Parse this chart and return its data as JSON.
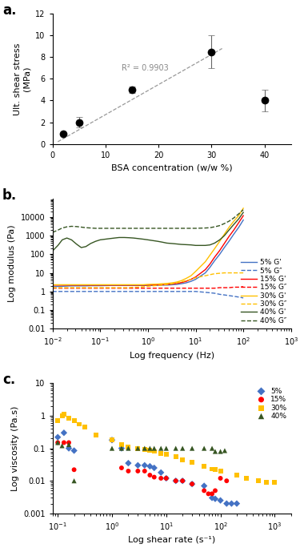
{
  "panel_a": {
    "x": [
      2,
      5,
      15,
      30,
      40
    ],
    "y": [
      0.9,
      2.0,
      5.0,
      8.5,
      4.0
    ],
    "yerr": [
      0.1,
      0.5,
      0.3,
      1.5,
      1.0
    ],
    "trendline_x": [
      1,
      32
    ],
    "trendline_y": [
      0.2,
      8.8
    ],
    "r2_text": "R² = 0.9903",
    "r2_x": 13,
    "r2_y": 6.8,
    "xlabel": "BSA concentration (w/w %)",
    "ylabel": "Ult. shear stress\n(MPa)",
    "xlim": [
      0,
      45
    ],
    "ylim": [
      0,
      12
    ],
    "xticks": [
      0,
      10,
      20,
      30,
      40
    ],
    "yticks": [
      0,
      2,
      4,
      6,
      8,
      10,
      12
    ]
  },
  "panel_b": {
    "xlabel": "Log frequency (Hz)",
    "ylabel": "Log modulus (Pa)",
    "series": {
      "5pct_Gp": {
        "x": [
          0.01,
          0.016,
          0.02,
          0.025,
          0.032,
          0.04,
          0.05,
          0.063,
          0.08,
          0.1,
          0.16,
          0.2,
          0.25,
          0.32,
          0.4,
          0.5,
          0.63,
          0.8,
          1.0,
          1.6,
          2.0,
          2.5,
          3.2,
          4.0,
          5.0,
          6.3,
          8.0,
          10.0,
          16.0,
          20.0,
          25.0,
          32.0,
          40.0,
          50.0,
          63.0,
          80.0,
          100.0
        ],
        "y": [
          1.8,
          1.9,
          1.95,
          2.0,
          2.0,
          2.0,
          2.0,
          2.05,
          2.05,
          2.05,
          2.1,
          2.1,
          2.1,
          2.1,
          2.1,
          2.1,
          2.1,
          2.1,
          2.1,
          2.15,
          2.2,
          2.2,
          2.3,
          2.4,
          2.6,
          2.9,
          3.5,
          4.5,
          10.0,
          20.0,
          45.0,
          100.0,
          230.0,
          500.0,
          1200.0,
          2800.0,
          7000.0
        ],
        "color": "#4472C4",
        "ls": "-",
        "label": "5% G'"
      },
      "5pct_Gpp": {
        "x": [
          0.01,
          0.016,
          0.02,
          0.025,
          0.032,
          0.04,
          0.05,
          0.063,
          0.08,
          0.1,
          0.16,
          0.2,
          0.25,
          0.32,
          0.4,
          0.5,
          0.63,
          0.8,
          1.0,
          1.6,
          2.0,
          2.5,
          3.2,
          4.0,
          5.0,
          6.3,
          8.0,
          10.0,
          16.0,
          20.0,
          25.0,
          32.0,
          40.0,
          50.0,
          63.0,
          80.0,
          100.0
        ],
        "y": [
          1.0,
          1.0,
          1.0,
          1.0,
          1.0,
          1.0,
          1.0,
          1.0,
          1.0,
          1.0,
          1.0,
          1.0,
          1.0,
          1.0,
          1.0,
          1.0,
          1.0,
          1.0,
          1.0,
          1.0,
          1.0,
          1.0,
          1.0,
          1.0,
          1.0,
          1.0,
          1.0,
          1.0,
          0.9,
          0.85,
          0.8,
          0.7,
          0.65,
          0.6,
          0.55,
          0.5,
          0.45
        ],
        "color": "#4472C4",
        "ls": "--",
        "label": "5% G″"
      },
      "15pct_Gp": {
        "x": [
          0.01,
          0.016,
          0.02,
          0.025,
          0.032,
          0.04,
          0.05,
          0.063,
          0.08,
          0.1,
          0.16,
          0.2,
          0.25,
          0.32,
          0.4,
          0.5,
          0.63,
          0.8,
          1.0,
          1.6,
          2.0,
          2.5,
          3.2,
          4.0,
          5.0,
          6.3,
          8.0,
          10.0,
          16.0,
          20.0,
          25.0,
          32.0,
          40.0,
          50.0,
          63.0,
          80.0,
          100.0
        ],
        "y": [
          2.2,
          2.2,
          2.2,
          2.2,
          2.2,
          2.2,
          2.2,
          2.2,
          2.2,
          2.2,
          2.2,
          2.2,
          2.2,
          2.2,
          2.2,
          2.2,
          2.2,
          2.2,
          2.2,
          2.3,
          2.35,
          2.4,
          2.5,
          2.7,
          3.0,
          3.5,
          4.5,
          6.0,
          15.0,
          30.0,
          70.0,
          160.0,
          380.0,
          900.0,
          2000.0,
          5000.0,
          12000.0
        ],
        "color": "#FF0000",
        "ls": "-",
        "label": "15% G'"
      },
      "15pct_Gpp": {
        "x": [
          0.01,
          0.016,
          0.02,
          0.025,
          0.032,
          0.04,
          0.05,
          0.063,
          0.08,
          0.1,
          0.16,
          0.2,
          0.25,
          0.32,
          0.4,
          0.5,
          0.63,
          0.8,
          1.0,
          1.6,
          2.0,
          2.5,
          3.2,
          4.0,
          5.0,
          6.3,
          8.0,
          10.0,
          16.0,
          20.0,
          25.0,
          32.0,
          40.0,
          50.0,
          63.0,
          80.0,
          100.0
        ],
        "y": [
          1.5,
          1.5,
          1.5,
          1.5,
          1.5,
          1.5,
          1.5,
          1.5,
          1.5,
          1.5,
          1.5,
          1.5,
          1.5,
          1.5,
          1.5,
          1.5,
          1.5,
          1.5,
          1.5,
          1.5,
          1.5,
          1.5,
          1.5,
          1.5,
          1.5,
          1.5,
          1.5,
          1.5,
          1.5,
          1.5,
          1.5,
          1.6,
          1.6,
          1.6,
          1.7,
          1.7,
          1.8
        ],
        "color": "#FF0000",
        "ls": "--",
        "label": "15% G″"
      },
      "30pct_Gp": {
        "x": [
          0.01,
          0.016,
          0.02,
          0.025,
          0.032,
          0.04,
          0.05,
          0.063,
          0.08,
          0.1,
          0.16,
          0.2,
          0.25,
          0.32,
          0.4,
          0.5,
          0.63,
          0.8,
          1.0,
          1.6,
          2.0,
          2.5,
          3.2,
          4.0,
          5.0,
          6.3,
          8.0,
          10.0,
          16.0,
          20.0,
          25.0,
          32.0,
          40.0,
          50.0,
          63.0,
          80.0,
          100.0
        ],
        "y": [
          2.3,
          2.3,
          2.3,
          2.3,
          2.3,
          2.3,
          2.3,
          2.3,
          2.3,
          2.3,
          2.3,
          2.3,
          2.3,
          2.3,
          2.3,
          2.3,
          2.3,
          2.3,
          2.4,
          2.5,
          2.6,
          2.7,
          2.9,
          3.2,
          3.8,
          5.0,
          7.0,
          12.0,
          40.0,
          90.0,
          200.0,
          500.0,
          1200.0,
          2800.0,
          6000.0,
          12000.0,
          30000.0
        ],
        "color": "#FFC000",
        "ls": "-",
        "label": "30% G'"
      },
      "30pct_Gpp": {
        "x": [
          0.01,
          0.016,
          0.02,
          0.025,
          0.032,
          0.04,
          0.05,
          0.063,
          0.08,
          0.1,
          0.16,
          0.2,
          0.25,
          0.32,
          0.4,
          0.5,
          0.63,
          0.8,
          1.0,
          1.6,
          2.0,
          2.5,
          3.2,
          4.0,
          5.0,
          6.3,
          8.0,
          10.0,
          16.0,
          20.0,
          25.0,
          32.0,
          40.0,
          50.0,
          63.0,
          80.0,
          100.0
        ],
        "y": [
          1.6,
          1.6,
          1.6,
          1.6,
          1.6,
          1.6,
          1.6,
          1.6,
          1.6,
          1.6,
          1.6,
          1.6,
          1.6,
          1.6,
          1.6,
          1.7,
          1.7,
          1.8,
          1.9,
          2.1,
          2.2,
          2.4,
          2.6,
          2.9,
          3.3,
          3.8,
          4.5,
          5.5,
          7.0,
          8.0,
          9.0,
          9.5,
          10.0,
          10.0,
          10.0,
          10.0,
          10.0
        ],
        "color": "#FFC000",
        "ls": "--",
        "label": "30% G″"
      },
      "40pct_Gp": {
        "x": [
          0.01,
          0.013,
          0.016,
          0.02,
          0.025,
          0.032,
          0.04,
          0.05,
          0.063,
          0.08,
          0.1,
          0.16,
          0.2,
          0.25,
          0.32,
          0.4,
          0.5,
          0.63,
          0.8,
          1.0,
          1.6,
          2.0,
          2.5,
          3.2,
          4.0,
          5.0,
          6.3,
          8.0,
          10.0,
          16.0,
          20.0,
          25.0,
          32.0,
          40.0,
          50.0,
          63.0,
          80.0,
          100.0
        ],
        "y": [
          150.0,
          300.0,
          600.0,
          750.0,
          600.0,
          350.0,
          230.0,
          260.0,
          380.0,
          500.0,
          600.0,
          700.0,
          750.0,
          800.0,
          800.0,
          780.0,
          750.0,
          700.0,
          650.0,
          600.0,
          500.0,
          450.0,
          400.0,
          380.0,
          360.0,
          340.0,
          330.0,
          320.0,
          300.0,
          300.0,
          320.0,
          400.0,
          600.0,
          1000.0,
          2000.0,
          4000.0,
          8000.0,
          18000.0
        ],
        "color": "#375623",
        "ls": "-",
        "label": "40% G'"
      },
      "40pct_Gpp": {
        "x": [
          0.01,
          0.013,
          0.016,
          0.02,
          0.025,
          0.032,
          0.04,
          0.05,
          0.063,
          0.08,
          0.1,
          0.16,
          0.2,
          0.25,
          0.32,
          0.4,
          0.5,
          0.63,
          0.8,
          1.0,
          1.6,
          2.0,
          2.5,
          3.2,
          4.0,
          5.0,
          6.3,
          8.0,
          10.0,
          16.0,
          20.0,
          25.0,
          32.0,
          40.0,
          50.0,
          63.0,
          80.0,
          100.0
        ],
        "y": [
          1500.0,
          2000.0,
          2600.0,
          3000.0,
          3200.0,
          3100.0,
          2900.0,
          2700.0,
          2600.0,
          2500.0,
          2500.0,
          2500.0,
          2500.0,
          2500.0,
          2500.0,
          2500.0,
          2500.0,
          2500.0,
          2500.0,
          2500.0,
          2500.0,
          2500.0,
          2500.0,
          2500.0,
          2500.0,
          2500.0,
          2500.0,
          2500.0,
          2500.0,
          2600.0,
          2700.0,
          3000.0,
          3500.0,
          4500.0,
          6000.0,
          9000.0,
          15000.0,
          25000.0
        ],
        "color": "#375623",
        "ls": "--",
        "label": "40% G″"
      }
    }
  },
  "panel_c": {
    "xlabel": "Log shear rate (s⁻¹)",
    "ylabel": "Log viscosity (Pa.s)",
    "series": {
      "5pct": {
        "x": [
          0.1,
          0.13,
          0.16,
          0.2,
          1.0,
          1.5,
          2.0,
          3.0,
          4.0,
          5.0,
          6.0,
          8.0,
          10.0,
          15.0,
          20.0,
          30.0,
          50.0,
          70.0,
          80.0,
          100.0,
          130.0,
          160.0,
          200.0
        ],
        "y": [
          0.22,
          0.3,
          0.1,
          0.085,
          0.18,
          0.1,
          0.035,
          0.03,
          0.03,
          0.028,
          0.025,
          0.018,
          0.012,
          0.01,
          0.01,
          0.008,
          0.007,
          0.003,
          0.0028,
          0.0025,
          0.002,
          0.002,
          0.002
        ],
        "color": "#4472C4",
        "marker": "D",
        "label": "5%"
      },
      "15pct": {
        "x": [
          0.1,
          0.13,
          0.16,
          0.2,
          1.0,
          1.5,
          2.0,
          3.0,
          4.0,
          5.0,
          6.0,
          8.0,
          10.0,
          15.0,
          20.0,
          30.0,
          50.0,
          60.0,
          70.0,
          80.0,
          100.0,
          130.0
        ],
        "y": [
          0.15,
          0.15,
          0.15,
          0.022,
          0.18,
          0.025,
          0.02,
          0.02,
          0.02,
          0.015,
          0.013,
          0.012,
          0.012,
          0.01,
          0.01,
          0.008,
          0.005,
          0.004,
          0.004,
          0.005,
          0.012,
          0.01
        ],
        "color": "#FF0000",
        "marker": "o",
        "label": "15%"
      },
      "30pct": {
        "x": [
          0.1,
          0.12,
          0.13,
          0.16,
          0.2,
          0.25,
          0.32,
          0.5,
          1.0,
          1.5,
          2.0,
          3.0,
          4.0,
          5.0,
          6.0,
          8.0,
          10.0,
          15.0,
          20.0,
          30.0,
          50.0,
          70.0,
          80.0,
          100.0,
          200.0,
          300.0,
          500.0,
          700.0,
          1000.0
        ],
        "y": [
          0.7,
          1.0,
          1.1,
          0.85,
          0.7,
          0.55,
          0.45,
          0.25,
          0.18,
          0.13,
          0.11,
          0.1,
          0.09,
          0.085,
          0.08,
          0.07,
          0.065,
          0.055,
          0.045,
          0.038,
          0.028,
          0.023,
          0.022,
          0.02,
          0.015,
          0.012,
          0.01,
          0.009,
          0.009
        ],
        "color": "#FFC000",
        "marker": "s",
        "label": "30%"
      },
      "40pct": {
        "x": [
          0.1,
          0.12,
          0.16,
          0.2,
          1.0,
          1.5,
          2.0,
          3.0,
          4.0,
          5.0,
          6.0,
          8.0,
          10.0,
          15.0,
          20.0,
          30.0,
          50.0,
          70.0,
          80.0,
          100.0,
          120.0
        ],
        "y": [
          0.15,
          0.12,
          0.13,
          0.01,
          0.1,
          0.1,
          0.1,
          0.1,
          0.1,
          0.1,
          0.1,
          0.1,
          0.1,
          0.1,
          0.1,
          0.1,
          0.1,
          0.1,
          0.08,
          0.08,
          0.085
        ],
        "color": "#375623",
        "marker": "^",
        "label": "40%"
      }
    }
  },
  "bg_color": "#ffffff",
  "label_fontsize": 8,
  "tick_fontsize": 7,
  "legend_fontsize": 6.5
}
